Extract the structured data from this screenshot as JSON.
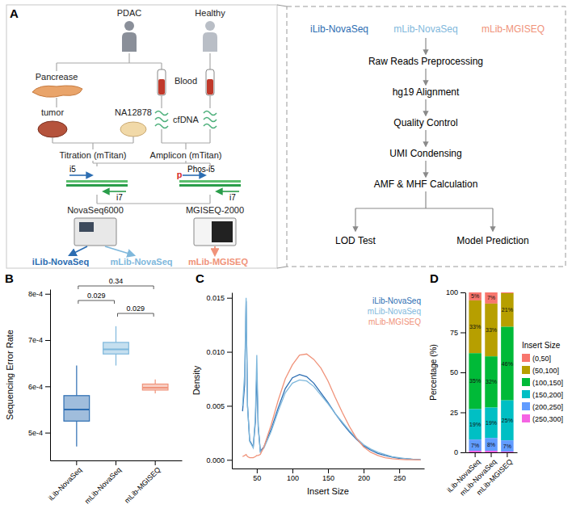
{
  "diagram": {
    "panel_label": "A",
    "subjects": [
      "PDAC",
      "Healthy"
    ],
    "tissues": [
      "Pancrease",
      "Blood"
    ],
    "samples": [
      "tumor",
      "NA12878",
      "cfDNA"
    ],
    "libraries": [
      "Titration (mTitan)",
      "Amplicon (mTitan)"
    ],
    "adapters": [
      {
        "labels": [
          "i5",
          "i7"
        ]
      },
      {
        "labels": [
          "p",
          "Phos-i5",
          "i7"
        ]
      }
    ],
    "sequencers": [
      "NovaSeq6000",
      "MGISEQ-2000"
    ],
    "outputs": [
      {
        "label": "iLib-NovaSeq",
        "color": "#2c6db2"
      },
      {
        "label": "mLib-NovaSeq",
        "color": "#7fb8dc"
      },
      {
        "label": "mLib-MGISEQ",
        "color": "#f0937a"
      }
    ],
    "pipeline": {
      "steps": [
        "Raw Reads Preprocessing",
        "hg19 Alignment",
        "Quality Control",
        "UMI Condensing",
        "AMF & MHF Calculation"
      ],
      "branches": [
        "LOD Test",
        "Model Prediction"
      ]
    }
  },
  "chart_data": [
    {
      "type": "box",
      "panel_label": "B",
      "y_label": "Sequencing Error Rate",
      "categories": [
        "iLib-NovaSeq",
        "mLib-NovaSeq",
        "mLib-MGISEQ"
      ],
      "colors": [
        "#2c6db2",
        "#7fb8dc",
        "#f0937a"
      ],
      "boxes": [
        {
          "min": 0.00047,
          "q1": 0.000525,
          "median": 0.00055,
          "q3": 0.00058,
          "max": 0.000645
        },
        {
          "min": 0.000645,
          "q1": 0.00067,
          "median": 0.00068,
          "q3": 0.000695,
          "max": 0.00073
        },
        {
          "min": 0.000585,
          "q1": 0.000592,
          "median": 0.000597,
          "q3": 0.000605,
          "max": 0.000615
        }
      ],
      "comparisons": [
        {
          "pair": [
            "iLib-NovaSeq",
            "mLib-NovaSeq"
          ],
          "label": "0.029"
        },
        {
          "pair": [
            "mLib-NovaSeq",
            "mLib-MGISEQ"
          ],
          "label": "0.029"
        },
        {
          "pair": [
            "iLib-NovaSeq",
            "mLib-MGISEQ"
          ],
          "label": "0.34"
        }
      ],
      "ylim": [
        0.00044,
        0.00081
      ],
      "yticks": [
        {
          "value": 0.0005,
          "label": "5e-4"
        },
        {
          "value": 0.0006,
          "label": "6e-4"
        },
        {
          "value": 0.0007,
          "label": "7e-4"
        },
        {
          "value": 0.0008,
          "label": "8e-4"
        }
      ]
    },
    {
      "type": "line",
      "panel_label": "C",
      "x_label": "Insert Size",
      "y_label": "Density",
      "x": [
        30,
        33,
        35,
        37,
        40,
        45,
        48,
        50,
        52,
        55,
        60,
        70,
        80,
        90,
        100,
        110,
        120,
        130,
        140,
        150,
        160,
        170,
        180,
        190,
        200,
        210,
        220,
        230,
        240,
        250,
        260,
        270,
        280
      ],
      "series": [
        {
          "name": "iLib-NovaSeq",
          "color": "#2c6db2",
          "values": [
            0.0045,
            0.007,
            0.0147,
            0.005,
            0.0018,
            0.0012,
            0.0035,
            0.008,
            0.003,
            0.0008,
            0.0012,
            0.0028,
            0.0048,
            0.0066,
            0.0076,
            0.0079,
            0.0077,
            0.0071,
            0.0062,
            0.0053,
            0.0043,
            0.0034,
            0.0026,
            0.0019,
            0.0013,
            0.0009,
            0.0006,
            0.0004,
            0.00025,
            0.00015,
            0.0001,
            5e-05,
            2e-05
          ]
        },
        {
          "name": "mLib-NovaSeq",
          "color": "#7fb8dc",
          "values": [
            0.005,
            0.008,
            0.015,
            0.005,
            0.0017,
            0.0011,
            0.004,
            0.0097,
            0.0032,
            0.0007,
            0.0011,
            0.0026,
            0.0045,
            0.0062,
            0.0071,
            0.0074,
            0.0073,
            0.0068,
            0.006,
            0.0052,
            0.0043,
            0.0035,
            0.0027,
            0.002,
            0.0014,
            0.001,
            0.0007,
            0.0005,
            0.0003,
            0.0002,
            0.0001,
            5e-05,
            2e-05
          ]
        },
        {
          "name": "mLib-MGISEQ",
          "color": "#f0937a",
          "values": [
            0.0003,
            0.0004,
            0.0005,
            0.0003,
            0.0002,
            0.0002,
            0.0003,
            0.0004,
            0.0004,
            0.0005,
            0.0012,
            0.0032,
            0.0055,
            0.0075,
            0.0088,
            0.0097,
            0.0098,
            0.0093,
            0.0085,
            0.0073,
            0.0058,
            0.0044,
            0.0031,
            0.002,
            0.0012,
            0.0007,
            0.0004,
            0.0002,
            0.0001,
            5e-05,
            2e-05,
            1e-05,
            0
          ]
        }
      ],
      "xlim": [
        15,
        285
      ],
      "xticks": [
        50,
        100,
        150,
        200,
        250
      ],
      "ylim": [
        -0.0008,
        0.0155
      ],
      "yticks": [
        {
          "value": 0,
          "label": "0.000"
        },
        {
          "value": 0.005,
          "label": "0.005"
        },
        {
          "value": 0.01,
          "label": "0.010"
        },
        {
          "value": 0.015,
          "label": "0.015"
        }
      ],
      "legend": "top-right"
    },
    {
      "type": "bar",
      "panel_label": "D",
      "stacked": true,
      "data_labels": true,
      "y_label": "Percentage (%)",
      "categories": [
        "iLib-NovaSeq",
        "mLib-NovaSeq",
        "mLib-MGISEQ"
      ],
      "legend": "right",
      "legend_title": "Insert Size",
      "series": [
        {
          "name": "(0,50]",
          "color": "#F8766D",
          "values": [
            5,
            7,
            0.5
          ],
          "value_labels": [
            "5%",
            "7%",
            null
          ]
        },
        {
          "name": "(50,100]",
          "color": "#B79F00",
          "values": [
            33,
            33,
            21
          ],
          "value_labels": [
            "33%",
            "33%",
            "21%"
          ]
        },
        {
          "name": "(100,150]",
          "color": "#00BA38",
          "values": [
            35,
            32,
            46
          ],
          "value_labels": [
            "35%",
            "32%",
            "46%"
          ]
        },
        {
          "name": "(150,200]",
          "color": "#00BFC4",
          "values": [
            19,
            19,
            25
          ],
          "value_labels": [
            "19%",
            "19%",
            "25%"
          ]
        },
        {
          "name": "(200,250]",
          "color": "#619CFF",
          "values": [
            7,
            8,
            7
          ],
          "value_labels": [
            "7%",
            "8%",
            "7%"
          ]
        },
        {
          "name": "(250,300]",
          "color": "#F564E3",
          "values": [
            1,
            1,
            0.5
          ],
          "value_labels": [
            null,
            null,
            null
          ]
        }
      ],
      "ylim": [
        0,
        100
      ],
      "yticks": [
        0,
        25,
        50,
        75,
        100
      ]
    }
  ]
}
